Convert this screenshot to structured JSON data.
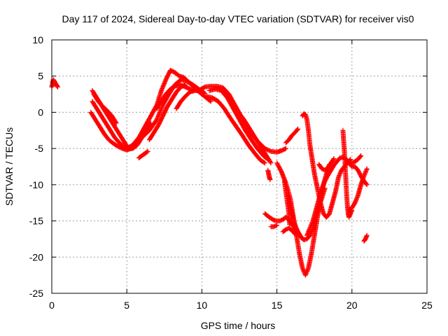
{
  "chart_data": {
    "type": "scatter",
    "title": "Day 117 of 2024, Sidereal Day-to-day VTEC variation (SDTVAR) for receiver vis0",
    "xlabel": "GPS time / hours",
    "ylabel": "SDTVAR / TECUs",
    "xlim": [
      0,
      25
    ],
    "ylim": [
      -25,
      10
    ],
    "xticks": [
      0,
      5,
      10,
      15,
      20,
      25
    ],
    "yticks": [
      -25,
      -20,
      -15,
      -10,
      -5,
      0,
      5,
      10
    ],
    "grid": true,
    "legend": "none",
    "marker": "+",
    "color": "#ff0000",
    "series": [
      {
        "x": [
          0.0,
          0.1,
          0.2,
          0.3,
          0.35,
          0.4
        ],
        "y": [
          3.5,
          4.5,
          4.2,
          3.8,
          3.6,
          3.5
        ]
      },
      {
        "x": [
          0.05,
          0.15,
          0.25,
          0.35
        ],
        "y": [
          4.2,
          4.0,
          3.9,
          3.7
        ]
      },
      {
        "x": [
          2.7,
          3.0,
          3.3,
          3.6,
          3.9,
          4.2,
          4.5,
          4.8,
          5.1,
          5.4,
          5.7,
          6.0,
          6.3,
          6.6
        ],
        "y": [
          3.0,
          2.0,
          1.0,
          0.0,
          -1.0,
          -2.0,
          -3.0,
          -4.0,
          -5.0,
          -5.0,
          -4.5,
          -3.5,
          -2.5,
          -1.5
        ]
      },
      {
        "x": [
          2.7,
          3.0,
          3.3,
          3.6,
          3.9,
          4.2,
          4.5,
          4.8,
          5.1,
          5.4,
          5.7,
          6.0
        ],
        "y": [
          1.5,
          0.5,
          -0.5,
          -1.5,
          -2.5,
          -3.5,
          -4.2,
          -4.8,
          -5.0,
          -4.8,
          -4.0,
          -3.0
        ]
      },
      {
        "x": [
          2.6,
          2.9,
          3.2,
          3.5,
          3.8,
          4.1,
          4.4,
          4.7,
          5.0,
          5.3,
          5.6,
          5.9,
          6.2
        ],
        "y": [
          0.0,
          -1.0,
          -2.0,
          -3.0,
          -3.8,
          -4.3,
          -4.7,
          -5.0,
          -5.2,
          -5.0,
          -4.5,
          -3.5,
          -2.5
        ]
      },
      {
        "x": [
          2.8,
          3.1,
          3.4,
          3.7,
          4.0,
          4.3
        ],
        "y": [
          2.5,
          1.5,
          0.8,
          0.2,
          -0.5,
          -1.5
        ]
      },
      {
        "x": [
          5.8,
          6.0,
          6.2,
          6.4
        ],
        "y": [
          -6.3,
          -6.0,
          -5.7,
          -5.4
        ]
      },
      {
        "x": [
          5.0,
          5.4,
          5.8,
          6.2,
          6.6,
          7.0,
          7.3,
          7.6,
          7.9,
          8.2,
          8.5,
          8.8,
          9.1,
          9.4,
          9.7,
          10.0,
          10.3,
          10.6
        ],
        "y": [
          -5.0,
          -4.5,
          -3.5,
          -2.0,
          -0.5,
          1.0,
          3.0,
          4.5,
          5.8,
          5.5,
          5.0,
          4.8,
          4.2,
          3.6,
          3.0,
          2.5,
          2.0,
          1.5
        ]
      },
      {
        "x": [
          5.5,
          6.0,
          6.5,
          7.0,
          7.4,
          7.8,
          8.2,
          8.6,
          9.0,
          9.4,
          9.8,
          10.2
        ],
        "y": [
          -4.5,
          -3.5,
          -2.5,
          -1.0,
          1.0,
          2.5,
          3.8,
          4.5,
          4.3,
          3.8,
          3.2,
          2.6
        ]
      },
      {
        "x": [
          6.5,
          6.8,
          7.1,
          7.4,
          7.7,
          8.0,
          8.3,
          8.6,
          8.9
        ],
        "y": [
          -3.8,
          -2.8,
          -1.8,
          -0.5,
          0.8,
          1.8,
          2.8,
          3.5,
          3.8
        ]
      },
      {
        "x": [
          7.0,
          7.3,
          7.6,
          7.9,
          8.2,
          8.5,
          8.8,
          9.1,
          9.4
        ],
        "y": [
          0.5,
          1.5,
          2.5,
          3.2,
          3.6,
          3.8,
          3.6,
          3.3,
          3.0
        ]
      },
      {
        "x": [
          8.3,
          8.6,
          8.9,
          9.2,
          9.5,
          9.8,
          10.1
        ],
        "y": [
          0.5,
          1.5,
          2.2,
          2.8,
          3.0,
          3.0,
          2.8
        ]
      },
      {
        "x": [
          9.8,
          10.2,
          10.6,
          11.0,
          11.4,
          11.8,
          12.2,
          12.6,
          13.0,
          13.4,
          13.8,
          14.2,
          14.6,
          15.0,
          15.3,
          15.6
        ],
        "y": [
          3.0,
          3.5,
          3.6,
          3.6,
          3.4,
          2.5,
          1.0,
          -0.5,
          -2.0,
          -3.2,
          -4.2,
          -5.0,
          -5.4,
          -5.5,
          -5.3,
          -5.0
        ]
      },
      {
        "x": [
          10.5,
          10.9,
          11.3,
          11.7,
          12.1,
          12.5,
          12.9,
          13.3,
          13.7,
          14.1,
          14.4
        ],
        "y": [
          3.0,
          3.2,
          3.0,
          2.0,
          0.5,
          -1.0,
          -2.5,
          -3.8,
          -5.0,
          -6.0,
          -6.5
        ]
      },
      {
        "x": [
          10.3,
          10.7,
          11.1,
          11.5,
          11.9,
          12.3,
          12.7,
          13.1,
          13.5,
          13.9,
          14.2
        ],
        "y": [
          2.2,
          2.0,
          1.5,
          0.5,
          -0.8,
          -2.0,
          -3.2,
          -4.5,
          -5.6,
          -6.6,
          -7.0
        ]
      },
      {
        "x": [
          12.5,
          12.8,
          13.1,
          13.4,
          13.7,
          14.0,
          14.3,
          14.6
        ],
        "y": [
          -0.2,
          -1.0,
          -2.0,
          -3.0,
          -4.0,
          -5.0,
          -6.0,
          -7.0
        ]
      },
      {
        "x": [
          15.6,
          15.8,
          16.0,
          16.2,
          16.4
        ],
        "y": [
          -4.2,
          -3.8,
          -3.2,
          -2.8,
          -2.3
        ]
      },
      {
        "x": [
          14.4,
          14.45,
          14.5,
          14.55
        ],
        "y": [
          -8.0,
          -8.5,
          -9.0,
          -9.3
        ]
      },
      {
        "x": [
          14.2,
          14.5,
          14.8,
          15.0,
          15.2,
          15.4,
          15.6,
          15.8,
          16.0,
          16.2,
          16.4,
          16.6,
          16.8
        ],
        "y": [
          -14.0,
          -14.5,
          -14.9,
          -15.0,
          -15.0,
          -14.8,
          -14.5,
          -14.8,
          -15.5,
          -16.0,
          -16.5,
          -17.2,
          -17.6
        ]
      },
      {
        "x": [
          14.6,
          14.8,
          15.0
        ],
        "y": [
          -15.8,
          -15.8,
          -15.6
        ]
      },
      {
        "x": [
          15.4,
          15.6,
          15.8,
          16.0,
          16.2
        ],
        "y": [
          -16.5,
          -16.2,
          -16.0,
          -16.3,
          -16.8
        ]
      },
      {
        "x": [
          15.5,
          15.6,
          15.7,
          15.8,
          15.85
        ],
        "y": [
          -9.5,
          -11.0,
          -12.5,
          -14.0,
          -15.5
        ]
      },
      {
        "x": [
          15.0,
          15.3,
          15.6,
          15.9,
          16.1,
          16.3,
          16.5,
          16.7,
          16.9,
          17.1,
          17.3,
          17.5,
          17.7,
          17.9,
          18.1,
          18.3,
          18.5
        ],
        "y": [
          -7.0,
          -8.2,
          -9.8,
          -12.0,
          -14.5,
          -17.0,
          -19.5,
          -21.5,
          -22.5,
          -21.5,
          -19.5,
          -17.0,
          -14.5,
          -12.0,
          -10.0,
          -8.5,
          -7.2
        ]
      },
      {
        "x": [
          15.8,
          16.0,
          16.2,
          16.4,
          16.6,
          16.8,
          17.0,
          17.2,
          17.4,
          17.6,
          17.8,
          18.0,
          18.2
        ],
        "y": [
          -12.0,
          -14.0,
          -15.5,
          -16.5,
          -17.3,
          -17.6,
          -17.5,
          -17.0,
          -16.0,
          -14.5,
          -13.0,
          -11.8,
          -10.5
        ]
      },
      {
        "x": [
          16.7,
          16.8,
          16.9,
          17.0,
          17.1,
          17.2,
          17.35,
          17.5,
          17.7,
          17.9,
          18.1,
          18.3,
          18.5,
          18.7,
          18.9,
          19.1,
          19.3,
          19.5,
          19.7,
          19.9
        ],
        "y": [
          -0.5,
          -0.2,
          -0.3,
          -1.0,
          -2.5,
          -4.5,
          -6.5,
          -8.5,
          -10.5,
          -12.5,
          -14.0,
          -14.5,
          -14.0,
          -12.5,
          -11.0,
          -9.0,
          -8.0,
          -7.5,
          -7.0,
          -6.5
        ]
      },
      {
        "x": [
          17.0,
          17.2,
          17.4,
          17.6,
          17.8,
          18.0,
          18.2,
          18.4,
          18.6,
          18.8,
          19.0,
          19.2,
          19.4,
          19.6,
          19.8,
          20.0,
          20.2,
          20.4,
          20.6
        ],
        "y": [
          -17.0,
          -16.0,
          -15.0,
          -13.5,
          -12.0,
          -10.5,
          -9.5,
          -8.7,
          -8.0,
          -7.3,
          -6.8,
          -6.3,
          -6.2,
          -6.5,
          -6.8,
          -7.0,
          -6.8,
          -6.5,
          -6.0
        ]
      },
      {
        "x": [
          17.8,
          18.0,
          18.2,
          18.4,
          18.6,
          18.8
        ],
        "y": [
          -7.2,
          -7.8,
          -8.0,
          -7.6,
          -7.0,
          -6.4
        ]
      },
      {
        "x": [
          19.4,
          19.45,
          19.5,
          19.55,
          19.6,
          19.65,
          19.7,
          19.75,
          19.8,
          19.9,
          20.0
        ],
        "y": [
          -2.5,
          -4.0,
          -5.5,
          -7.5,
          -9.5,
          -11.5,
          -13.0,
          -14.0,
          -14.5,
          -14.0,
          -13.5
        ]
      },
      {
        "x": [
          19.6,
          19.8,
          20.0,
          20.2,
          20.4,
          20.6,
          20.8,
          21.0
        ],
        "y": [
          -6.5,
          -7.0,
          -7.5,
          -7.5,
          -8.0,
          -8.8,
          -9.5,
          -10.0
        ]
      },
      {
        "x": [
          19.8,
          20.0,
          20.2,
          20.4,
          20.6,
          20.8,
          21.0
        ],
        "y": [
          -13.5,
          -13.2,
          -12.5,
          -11.5,
          -10.0,
          -8.8,
          -7.8
        ]
      },
      {
        "x": [
          20.8,
          20.9,
          21.0
        ],
        "y": [
          -17.8,
          -17.5,
          -17.0
        ]
      }
    ]
  }
}
